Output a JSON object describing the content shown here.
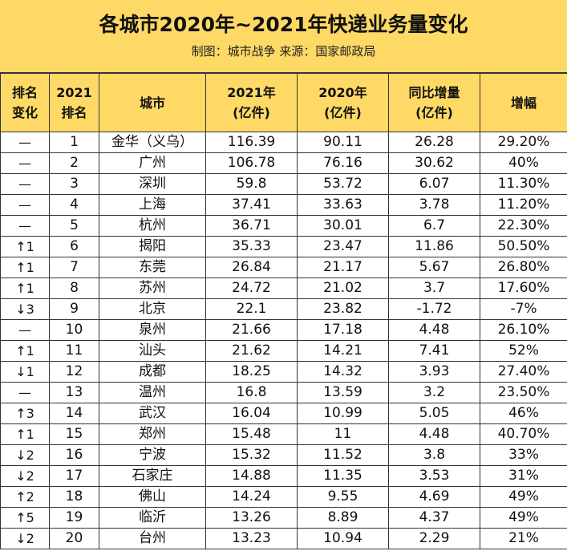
{
  "title": "各城市2020年~2021年快递业务量变化",
  "subtitle": "制图：城市战争   来源：国家邮政局",
  "colors": {
    "header_bg": "#FFD966",
    "border": "#333333"
  },
  "table": {
    "headers": [
      {
        "line1": "排名",
        "line2": "变化"
      },
      {
        "line1": "2021",
        "line2": "排名"
      },
      {
        "line1": "城市",
        "line2": ""
      },
      {
        "line1": "2021年",
        "line2": "(亿件)"
      },
      {
        "line1": "2020年",
        "line2": "(亿件)"
      },
      {
        "line1": "同比增量",
        "line2": "(亿件)"
      },
      {
        "line1": "增幅",
        "line2": ""
      }
    ],
    "rows": [
      [
        "—",
        "1",
        "金华（义乌）",
        "116.39",
        "90.11",
        "26.28",
        "29.20%"
      ],
      [
        "—",
        "2",
        "广州",
        "106.78",
        "76.16",
        "30.62",
        "40%"
      ],
      [
        "—",
        "3",
        "深圳",
        "59.8",
        "53.72",
        "6.07",
        "11.30%"
      ],
      [
        "—",
        "4",
        "上海",
        "37.41",
        "33.63",
        "3.78",
        "11.20%"
      ],
      [
        "—",
        "5",
        "杭州",
        "36.71",
        "30.01",
        "6.7",
        "22.30%"
      ],
      [
        "↑1",
        "6",
        "揭阳",
        "35.33",
        "23.47",
        "11.86",
        "50.50%"
      ],
      [
        "↑1",
        "7",
        "东莞",
        "26.84",
        "21.17",
        "5.67",
        "26.80%"
      ],
      [
        "↑1",
        "8",
        "苏州",
        "24.72",
        "21.02",
        "3.7",
        "17.60%"
      ],
      [
        "↓3",
        "9",
        "北京",
        "22.1",
        "23.82",
        "-1.72",
        "-7%"
      ],
      [
        "—",
        "10",
        "泉州",
        "21.66",
        "17.18",
        "4.48",
        "26.10%"
      ],
      [
        "↑1",
        "11",
        "汕头",
        "21.62",
        "14.21",
        "7.41",
        "52%"
      ],
      [
        "↓1",
        "12",
        "成都",
        "18.25",
        "14.32",
        "3.93",
        "27.40%"
      ],
      [
        "—",
        "13",
        "温州",
        "16.8",
        "13.59",
        "3.2",
        "23.50%"
      ],
      [
        "↑3",
        "14",
        "武汉",
        "16.04",
        "10.99",
        "5.05",
        "46%"
      ],
      [
        "↑1",
        "15",
        "郑州",
        "15.48",
        "11",
        "4.48",
        "40.70%"
      ],
      [
        "↓2",
        "16",
        "宁波",
        "15.32",
        "11.52",
        "3.8",
        "33%"
      ],
      [
        "↓2",
        "17",
        "石家庄",
        "14.88",
        "11.35",
        "3.53",
        "31%"
      ],
      [
        "↑2",
        "18",
        "佛山",
        "14.24",
        "9.55",
        "4.69",
        "49%"
      ],
      [
        "↑5",
        "19",
        "临沂",
        "13.26",
        "8.89",
        "4.37",
        "49%"
      ],
      [
        "↓2",
        "20",
        "台州",
        "13.23",
        "10.94",
        "2.29",
        "21%"
      ]
    ]
  }
}
